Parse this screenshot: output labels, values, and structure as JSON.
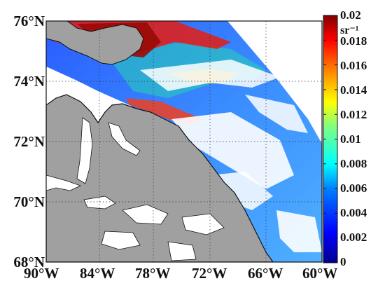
{
  "map": {
    "lat_ticks": [
      "76°N",
      "74°N",
      "72°N",
      "70°N",
      "68°N"
    ],
    "lon_ticks": [
      "90°W",
      "84°W",
      "78°W",
      "72°W",
      "66°W",
      "60°W"
    ],
    "extent": {
      "west_deg": -90,
      "east_deg": -60,
      "south_deg": 68,
      "north_deg": 76
    },
    "land_color": "#a0a0a0",
    "nodata_color": "#ffffff",
    "coastline_color": "#111111",
    "gridline_style": "dotted"
  },
  "colorbar": {
    "labels": [
      "0.02",
      "0.018",
      "0.016",
      "0.014",
      "0.012",
      "0.01",
      "0.008",
      "0.006",
      "0.004",
      "0.002",
      "0"
    ],
    "unit": "sr⁻¹",
    "min": 0,
    "max": 0.02,
    "colormap": "jet",
    "colors": [
      "#00008f",
      "#0000ff",
      "#0080ff",
      "#00ffff",
      "#80ff80",
      "#ffff00",
      "#ff8000",
      "#ff0000",
      "#800000"
    ]
  }
}
